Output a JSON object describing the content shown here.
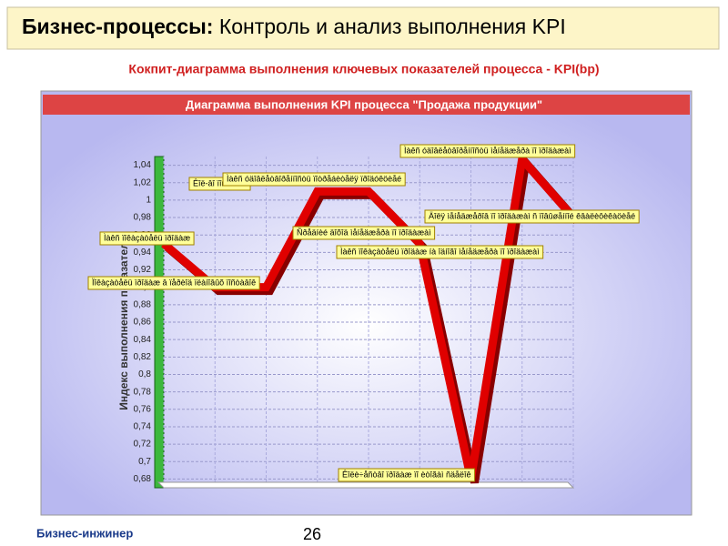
{
  "header": {
    "title_bold": "Бизнес-процессы:",
    "title_rest": "Контроль и анализ выполнения KPI",
    "subtitle": "Кокпит-диаграмма выполнения ключевых показателей процесса - KPI(bp)"
  },
  "chart_data": {
    "type": "line",
    "title": "Диаграмма выполнения KPI процесса \"Продажа продукции\"",
    "y_label": "Индекс выполнения показателя",
    "categories": [
      null,
      null,
      null,
      null,
      null,
      null,
      null,
      null,
      null
    ],
    "values": [
      0.95,
      0.9,
      0.9,
      1.01,
      1.01,
      0.95,
      0.68,
      1.047,
      0.98
    ],
    "color": "#e00000",
    "ylim": [
      0.67,
      1.05
    ],
    "yticks": [
      {
        "value": 0.68,
        "label": "0,68"
      },
      {
        "value": 0.7,
        "label": "0,7"
      },
      {
        "value": 0.72,
        "label": "0,72"
      },
      {
        "value": 0.74,
        "label": "0,74"
      },
      {
        "value": 0.76,
        "label": "0,76"
      },
      {
        "value": 0.78,
        "label": "0,78"
      },
      {
        "value": 0.8,
        "label": "0,8"
      },
      {
        "value": 0.82,
        "label": "0,82"
      },
      {
        "value": 0.84,
        "label": "0,84"
      },
      {
        "value": 0.86,
        "label": "0,86"
      },
      {
        "value": 0.88,
        "label": "0,88"
      },
      {
        "value": 0.9,
        "label": "0,9"
      },
      {
        "value": 0.92,
        "label": "0,92"
      },
      {
        "value": 0.94,
        "label": "0,94"
      },
      {
        "value": 0.96,
        "label": "0,96"
      },
      {
        "value": 0.98,
        "label": "0,98"
      },
      {
        "value": 1,
        "label": "1"
      },
      {
        "value": 1.02,
        "label": "1,02"
      },
      {
        "value": 1.04,
        "label": "1,04"
      }
    ],
    "grid": true,
    "annotations": [
      "Ìàêñ óäîâëåòâîðåííîñòü ìåíåäæåðà ïî ïðîäàæàì",
      "Êîë-âî ïîñòàâîê",
      "Ìàêñ óäîâëåòâîðåííîñòü ïîòðåáèòåëÿ ïðîäóêöèåé",
      "Äîëÿ ìåíåäæåðîâ ïî ïðîäàæàì ñ ïîâûøåííîé êâàëèôèêàöèåé",
      "Ñðåäíèé äîõîä ìåíåäæåðà ïî ïðîäàæàì",
      "Ìàêñ ïîêàçàòåëü ïðîäàæ",
      "Ìàêñ ïîêàçàòåëü ïðîäàæ íà îäíîãî ìåíåäæåðà ïî ïðîäàæàì",
      "Ïîêàçàòåëü ïðîäàæ â ïåðèîä ïëàíîâûõ ïîñòàâîê",
      "Êîëè÷åñòâî ïðîäàæ ïî èòîãàì ñäåëîê"
    ]
  },
  "footer": {
    "company": "Бизнес-инжинер",
    "page": "26"
  }
}
